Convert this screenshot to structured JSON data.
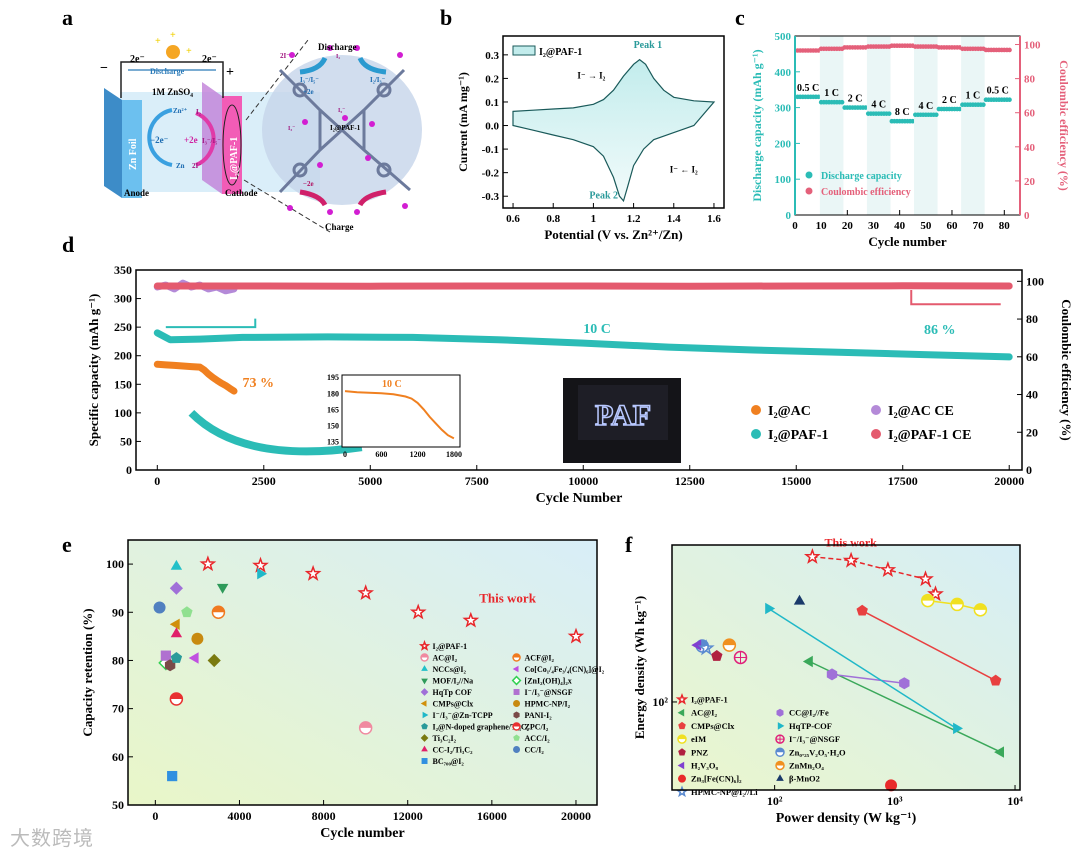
{
  "panel_labels": [
    "a",
    "b",
    "c",
    "d",
    "e",
    "f"
  ],
  "watermark": "大数跨境",
  "diagram_a": {
    "electron_left": "2e⁻",
    "electron_right": "2e⁻",
    "minus": "−",
    "plus": "+",
    "discharge_arrow": "Discharge",
    "electrolyte": "1M ZnSO₄",
    "anode_material": "Zn Foil",
    "cathode_material": "I₂@PAF-1",
    "anode_label": "Anode",
    "cathode_label": "Cathode",
    "zn2plus": "Zn²⁺",
    "zn": "Zn",
    "minus_2e": "−2e⁻",
    "plus_2e": "+2e",
    "i2": "I₂",
    "i3_i5": "I₃⁻/I₅⁻",
    "two_i": "2I⁻",
    "zoom_top": "Discharge",
    "zoom_bottom": "Charge",
    "zoom_center": "I₂@PAF-1",
    "zoom_tl_pair": "I₃⁻/I₅⁻",
    "zoom_tr_pair": "I₂/I₃⁻",
    "zoom_plus2e": "+2e",
    "zoom_minus2e": "−2e",
    "zoom_2i": "2I⁻",
    "zoom_i2": "I₂",
    "zoom_i3": "I₃⁻",
    "zoom_i5": "I₅⁻",
    "colors": {
      "anode": "#5ab4e6",
      "cathode": "#f25cb6",
      "electrolyte": "#d6ecf8",
      "framework": "#6c7a9c",
      "iodine": "#d21ed2"
    }
  },
  "photo_d": {
    "text": "PAF"
  },
  "chart_data": [
    {
      "id": "b",
      "type": "line",
      "xlabel": "Potential (V vs. Zn²⁺/Zn)",
      "ylabel": "Current (mA mg⁻¹)",
      "xlim": [
        0.55,
        1.65
      ],
      "ylim": [
        -0.35,
        0.38
      ],
      "xticks": [
        0.6,
        0.8,
        1.0,
        1.2,
        1.4,
        1.6
      ],
      "yticks": [
        -0.3,
        -0.2,
        -0.1,
        0.0,
        0.1,
        0.2,
        0.3
      ],
      "legend": "I₂@PAF-1",
      "legend_position": "top-left",
      "annotations": {
        "peak1": "Peak 1",
        "peak2": "Peak 2",
        "ox": "I⁻ → I₂",
        "red": "I⁻ ← I₂"
      },
      "anodic": {
        "x": [
          0.6,
          0.7,
          0.8,
          0.9,
          1.0,
          1.05,
          1.1,
          1.15,
          1.2,
          1.23,
          1.26,
          1.3,
          1.35,
          1.4,
          1.5,
          1.6
        ],
        "y": [
          0.06,
          0.065,
          0.07,
          0.075,
          0.09,
          0.11,
          0.15,
          0.21,
          0.26,
          0.28,
          0.26,
          0.2,
          0.15,
          0.12,
          0.105,
          0.1
        ]
      },
      "cathodic": {
        "x": [
          1.6,
          1.5,
          1.4,
          1.3,
          1.25,
          1.2,
          1.17,
          1.15,
          1.13,
          1.1,
          1.05,
          1.0,
          0.9,
          0.8,
          0.7,
          0.6
        ],
        "y": [
          0.1,
          0.0,
          -0.03,
          -0.06,
          -0.1,
          -0.17,
          -0.26,
          -0.32,
          -0.3,
          -0.22,
          -0.13,
          -0.09,
          -0.06,
          -0.04,
          -0.02,
          0.0
        ]
      }
    },
    {
      "id": "c",
      "type": "scatter",
      "xlabel": "Cycle number",
      "ylabel": "Discharge capacity (mAh g⁻¹)",
      "y2label": "Coulombic efficiency (%)",
      "xlim": [
        0,
        86
      ],
      "ylim": [
        0,
        500
      ],
      "y2lim": [
        0,
        105
      ],
      "xticks": [
        0,
        10,
        20,
        30,
        40,
        50,
        60,
        70,
        80
      ],
      "yticks": [
        0,
        100,
        200,
        300,
        400,
        500
      ],
      "y2ticks": [
        0,
        20,
        40,
        60,
        80,
        100
      ],
      "legend": [
        "Discharge capacity",
        "Coulombic efficiency"
      ],
      "legend_position": "bottom-left",
      "colors": {
        "capacity": "#2bbcb6",
        "ce": "#e4607a"
      },
      "segments": [
        {
          "label": "0.5 C",
          "start": 1,
          "end": 9,
          "capacity": 330,
          "ce": 96.5
        },
        {
          "label": "1 C",
          "start": 10,
          "end": 18,
          "capacity": 315,
          "ce": 97.5
        },
        {
          "label": "2 C",
          "start": 19,
          "end": 27,
          "capacity": 300,
          "ce": 98.3
        },
        {
          "label": "4 C",
          "start": 28,
          "end": 36,
          "capacity": 283,
          "ce": 98.8
        },
        {
          "label": "8 C",
          "start": 37,
          "end": 45,
          "capacity": 262,
          "ce": 99.3
        },
        {
          "label": "4 C",
          "start": 46,
          "end": 54,
          "capacity": 280,
          "ce": 98.8
        },
        {
          "label": "2 C",
          "start": 55,
          "end": 63,
          "capacity": 296,
          "ce": 98.3
        },
        {
          "label": "1 C",
          "start": 64,
          "end": 72,
          "capacity": 308,
          "ce": 97.5
        },
        {
          "label": "0.5 C",
          "start": 73,
          "end": 82,
          "capacity": 322,
          "ce": 96.8
        }
      ]
    },
    {
      "id": "d",
      "type": "scatter",
      "xlabel": "Cycle Number",
      "ylabel": "Specific capacity (mAh g⁻¹)",
      "y2label": "Coulombic efficiency (%)",
      "xlim": [
        -500,
        20300
      ],
      "ylim": [
        0,
        350
      ],
      "y2lim": [
        0,
        106
      ],
      "xticks": [
        0,
        2500,
        5000,
        7500,
        10000,
        12500,
        15000,
        17500,
        20000
      ],
      "yticks": [
        0,
        50,
        100,
        150,
        200,
        250,
        300,
        350
      ],
      "y2ticks": [
        0,
        20,
        40,
        60,
        80,
        100
      ],
      "annotations": {
        "rate": "10 C",
        "retention_paf": "86 %",
        "retention_ac": "73 %"
      },
      "legend_position": "bottom-right",
      "series": [
        {
          "name": "I₂@AC",
          "color": "#f08020",
          "axis": "left",
          "x": [
            0,
            200,
            400,
            600,
            800,
            1000,
            1100,
            1200,
            1300,
            1400,
            1500,
            1600,
            1700,
            1800
          ],
          "y": [
            185,
            184,
            183,
            182,
            181,
            180,
            175,
            168,
            162,
            157,
            152,
            148,
            143,
            138
          ]
        },
        {
          "name": "I₂@PAF-1",
          "color": "#2bbcb6",
          "axis": "left",
          "x": [
            0,
            300,
            1000,
            2000,
            4000,
            6000,
            8000,
            10000,
            12000,
            14000,
            16000,
            18000,
            20000
          ],
          "y": [
            240,
            228,
            229,
            232,
            233,
            232,
            228,
            222,
            215,
            210,
            206,
            202,
            198
          ]
        },
        {
          "name": "I₂@AC CE",
          "color": "#b48ad8",
          "axis": "right",
          "x": [
            0,
            200,
            400,
            600,
            800,
            1000,
            1200,
            1400,
            1600,
            1800
          ],
          "y": [
            97,
            98,
            96,
            99,
            97,
            98,
            96,
            97,
            95,
            96
          ]
        },
        {
          "name": "I₂@PAF-1 CE",
          "color": "#e45a6e",
          "axis": "right",
          "x": [
            0,
            2500,
            5000,
            7500,
            10000,
            12500,
            15000,
            17500,
            20000
          ],
          "y": [
            97.5,
            97.5,
            97.4,
            97.5,
            97.5,
            97.4,
            97.5,
            97.6,
            97.5
          ]
        }
      ],
      "inset": {
        "title": "10 C",
        "xlim": [
          -50,
          1900
        ],
        "ylim": [
          130,
          197
        ],
        "xticks": [
          0,
          600,
          1200,
          1800
        ],
        "yticks": [
          135,
          150,
          165,
          180,
          195
        ],
        "x": [
          0,
          200,
          400,
          600,
          800,
          900,
          1000,
          1100,
          1200,
          1300,
          1400,
          1500,
          1600,
          1700,
          1800
        ],
        "y": [
          182,
          181,
          180.5,
          180,
          179,
          178,
          177,
          175,
          171,
          165,
          158,
          152,
          146,
          141,
          138
        ]
      }
    },
    {
      "id": "e",
      "type": "scatter",
      "xlabel": "Cycle number",
      "ylabel": "Capacity retention (%)",
      "xlim": [
        -1300,
        21000
      ],
      "ylim": [
        50,
        105
      ],
      "xticks": [
        0,
        4000,
        8000,
        12000,
        16000,
        20000
      ],
      "yticks": [
        50,
        60,
        70,
        80,
        90,
        100
      ],
      "annotation": "This work",
      "legend_position": "bottom-right",
      "series": [
        {
          "name": "I₂@PAF-1",
          "marker": "star",
          "color": "#e8262a",
          "points": [
            [
              2500,
              100
            ],
            [
              5000,
              99.7
            ],
            [
              7500,
              98
            ],
            [
              10000,
              94
            ],
            [
              12500,
              90
            ],
            [
              15000,
              88.3
            ],
            [
              20000,
              85
            ]
          ]
        },
        {
          "name": "AC@I₂",
          "marker": "half",
          "color": "#f08aa0",
          "points": [
            [
              10000,
              66
            ]
          ]
        },
        {
          "name": "ACF@I₂",
          "marker": "half",
          "color": "#f07a20",
          "points": [
            [
              3000,
              90
            ]
          ]
        },
        {
          "name": "NCCs@I₂",
          "marker": "tri-up",
          "color": "#22c0c8",
          "points": [
            [
              1000,
              99.5
            ]
          ]
        },
        {
          "name": "Co[Co₁/₄Fe₃/₄(CN)₆]@I₂",
          "marker": "tri-left",
          "color": "#c050e0",
          "points": [
            [
              1900,
              80.5
            ]
          ]
        },
        {
          "name": "MOF/I₂//Na",
          "marker": "tri-down",
          "color": "#2e9a5a",
          "points": [
            [
              3200,
              95.2
            ]
          ]
        },
        {
          "name": "[ZnI₂(OH)₄]₂x",
          "marker": "diamond-open",
          "color": "#30d050",
          "points": [
            [
              500,
              79.5
            ]
          ]
        },
        {
          "name": "HqTp COF",
          "marker": "diamond",
          "color": "#a070d8",
          "points": [
            [
              1000,
              95
            ]
          ]
        },
        {
          "name": "I⁻/I₃⁻@NSGF",
          "marker": "square",
          "color": "#b070d0",
          "points": [
            [
              500,
              81
            ]
          ]
        },
        {
          "name": "CMPs@Clx",
          "marker": "tri-left",
          "color": "#d0900a",
          "points": [
            [
              1000,
              87.5
            ]
          ]
        },
        {
          "name": "HPMC-NP/I₂",
          "marker": "circle",
          "color": "#c88a10",
          "points": [
            [
              2000,
              84.5
            ]
          ]
        },
        {
          "name": "I⁻/I₃⁻@Zn-TCPP",
          "marker": "tri-right",
          "color": "#20b8c8",
          "points": [
            [
              5000,
              98
            ]
          ]
        },
        {
          "name": "PANI-I₂",
          "marker": "hexagon",
          "color": "#7a4a48",
          "points": [
            [
              700,
              79
            ]
          ]
        },
        {
          "name": "I₂@N-doped graphene/Ti₃C₂",
          "marker": "pentagon",
          "color": "#2a9a9a",
          "points": [
            [
              1000,
              80.5
            ]
          ]
        },
        {
          "name": "ZPC/I₂",
          "marker": "half",
          "color": "#e83030",
          "points": [
            [
              1000,
              72
            ]
          ]
        },
        {
          "name": "Ti₃C₂I₂",
          "marker": "diamond",
          "color": "#7a7a10",
          "points": [
            [
              2800,
              80
            ]
          ]
        },
        {
          "name": "ACC/I₂",
          "marker": "pentagon",
          "color": "#90e090",
          "points": [
            [
              1500,
              90
            ]
          ]
        },
        {
          "name": "CC-I₂/Ti₃C₂",
          "marker": "tri-up",
          "color": "#e0206a",
          "points": [
            [
              1000,
              85.5
            ]
          ]
        },
        {
          "name": "CC/I₂",
          "marker": "circle",
          "color": "#5080c0",
          "points": [
            [
              200,
              91
            ]
          ]
        },
        {
          "name": "BC₇₀₀@I₂",
          "marker": "square",
          "color": "#3090e0",
          "points": [
            [
              800,
              56
            ]
          ]
        }
      ]
    },
    {
      "id": "f",
      "type": "scatter",
      "xlabel": "Power density (W kg⁻¹)",
      "ylabel": "Energy density (Wh kg⁻¹)",
      "xscale": "log",
      "yscale": "log",
      "xlim": [
        14,
        11000
      ],
      "ylim": [
        35,
        650
      ],
      "xticks": [
        100,
        1000,
        10000
      ],
      "xticklabels": [
        "10²",
        "10³",
        "10⁴"
      ],
      "yticks": [
        100
      ],
      "yticklabels": [
        "10²"
      ],
      "annotation": "This work",
      "legend_position": "bottom-left",
      "series": [
        {
          "name": "I₂@PAF-1",
          "marker": "star",
          "color": "#e8262a",
          "line": true,
          "points": [
            [
              206,
              565
            ],
            [
              433,
              540
            ],
            [
              875,
              483
            ],
            [
              1800,
              433
            ],
            [
              2180,
              362
            ]
          ]
        },
        {
          "name": "AC@I₂",
          "marker": "tri-left",
          "color": "#3aa85a",
          "line": true,
          "points": [
            [
              195,
              162
            ],
            [
              7600,
              55
            ]
          ]
        },
        {
          "name": "CC@I₂//Fe",
          "marker": "hexagon",
          "color": "#a070d8",
          "line": true,
          "points": [
            [
              300,
              139
            ],
            [
              1200,
              125
            ]
          ]
        },
        {
          "name": "CMPs@Clx",
          "marker": "pentagon",
          "color": "#e84040",
          "line": true,
          "points": [
            [
              535,
              297
            ],
            [
              6900,
              129
            ]
          ]
        },
        {
          "name": "HqTP-COF",
          "marker": "tri-right",
          "color": "#20b8c8",
          "line": true,
          "points": [
            [
              89,
              305
            ],
            [
              3250,
              73
            ]
          ]
        },
        {
          "name": "eIM",
          "marker": "half",
          "color": "#f0e020",
          "line": true,
          "points": [
            [
              1880,
              335
            ],
            [
              3300,
              320
            ],
            [
              5150,
              300
            ]
          ]
        },
        {
          "name": "I⁻/I₃⁻@NSGF",
          "marker": "cross-circle",
          "color": "#e0207a",
          "points": [
            [
              52,
              170
            ]
          ]
        },
        {
          "name": "PNZ",
          "marker": "pentagon",
          "color": "#b02040",
          "points": [
            [
              33,
              173
            ]
          ]
        },
        {
          "name": "Zn₀.₂₅V₂O₅·H₂O",
          "marker": "half",
          "color": "#5a8ad0",
          "points": [
            [
              25,
              195
            ]
          ]
        },
        {
          "name": "H₂V₃O₈",
          "marker": "tri-left",
          "color": "#8040d0",
          "points": [
            [
              23,
              197
            ]
          ]
        },
        {
          "name": "ZnMn₂O₄",
          "marker": "half",
          "color": "#f09020",
          "points": [
            [
              42,
              197
            ]
          ]
        },
        {
          "name": "Zn₃[Fe(CN)₆]₂",
          "marker": "circle",
          "color": "#e82a2a",
          "points": [
            [
              930,
              37
            ]
          ]
        },
        {
          "name": "β-MnO2",
          "marker": "tri-up",
          "color": "#1a3a6a",
          "points": [
            [
              161,
              332
            ]
          ]
        },
        {
          "name": "HPMC-NP@I₂//Li",
          "marker": "star-open",
          "color": "#5a8ad0",
          "points": [
            [
              27,
              190
            ]
          ]
        }
      ]
    }
  ]
}
